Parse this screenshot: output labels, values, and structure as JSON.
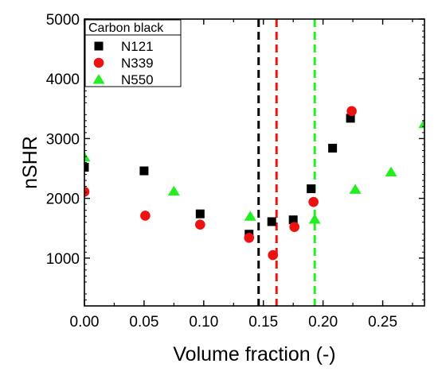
{
  "chart_data": {
    "type": "scatter",
    "title": "",
    "xlabel": "Volume fraction (-)",
    "ylabel": "nSHR",
    "xlim": [
      0.0,
      0.285
    ],
    "ylim": [
      200,
      5000
    ],
    "x_ticks": [
      "0.00",
      "0.05",
      "0.10",
      "0.15",
      "0.20",
      "0.25"
    ],
    "y_ticks": [
      "1000",
      "2000",
      "3000",
      "4000",
      "5000"
    ],
    "grid": false,
    "legend": {
      "title": "Carbon black",
      "position": "top-left"
    },
    "series": [
      {
        "name": "N121",
        "marker": "square",
        "color": "#000000",
        "points": [
          {
            "x": 0.0,
            "y": 2520
          },
          {
            "x": 0.05,
            "y": 2460
          },
          {
            "x": 0.097,
            "y": 1740
          },
          {
            "x": 0.138,
            "y": 1400
          },
          {
            "x": 0.157,
            "y": 1610
          },
          {
            "x": 0.175,
            "y": 1640
          },
          {
            "x": 0.19,
            "y": 2160
          },
          {
            "x": 0.208,
            "y": 2840
          },
          {
            "x": 0.223,
            "y": 3340
          }
        ]
      },
      {
        "name": "N339",
        "marker": "circle",
        "color": "#ee1111",
        "points": [
          {
            "x": 0.0,
            "y": 2110
          },
          {
            "x": 0.051,
            "y": 1710
          },
          {
            "x": 0.097,
            "y": 1560
          },
          {
            "x": 0.138,
            "y": 1340
          },
          {
            "x": 0.158,
            "y": 1050
          },
          {
            "x": 0.176,
            "y": 1520
          },
          {
            "x": 0.192,
            "y": 1940
          },
          {
            "x": 0.224,
            "y": 3460
          }
        ]
      },
      {
        "name": "N550",
        "marker": "triangle",
        "color": "#22ee22",
        "points": [
          {
            "x": 0.0,
            "y": 2690
          },
          {
            "x": 0.075,
            "y": 2120
          },
          {
            "x": 0.139,
            "y": 1700
          },
          {
            "x": 0.193,
            "y": 1650
          },
          {
            "x": 0.227,
            "y": 2150
          },
          {
            "x": 0.257,
            "y": 2440
          },
          {
            "x": 0.285,
            "y": 3250
          }
        ]
      }
    ],
    "vertical_lines": [
      {
        "x": 0.146,
        "color": "#000000",
        "style": "dashed"
      },
      {
        "x": 0.161,
        "color": "#ee1111",
        "style": "dashed"
      },
      {
        "x": 0.193,
        "color": "#22ee22",
        "style": "dashed"
      }
    ]
  }
}
